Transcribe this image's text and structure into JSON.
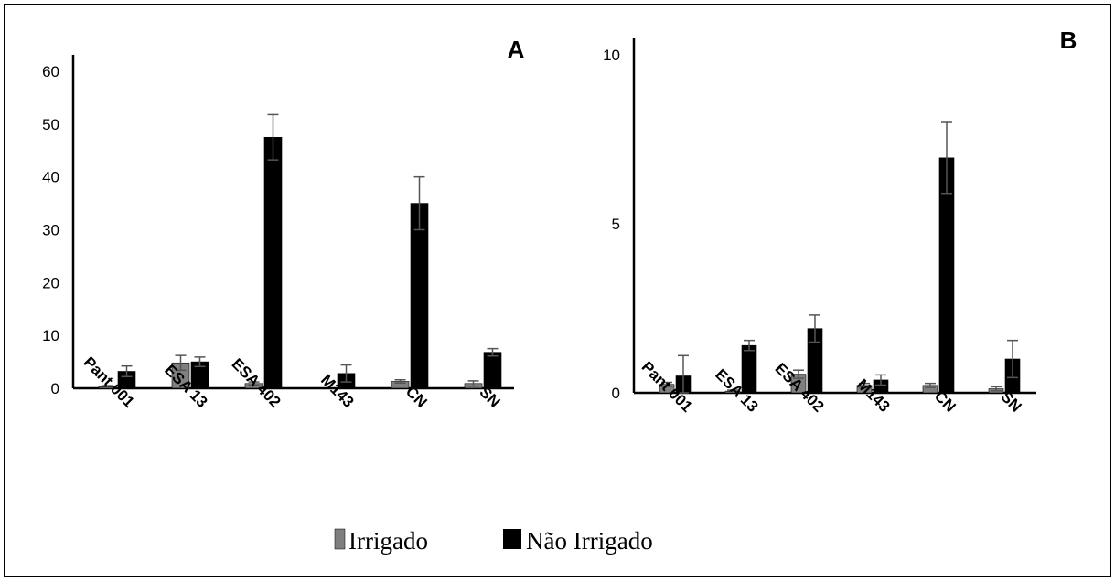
{
  "legend": {
    "items": [
      {
        "label": "Irrigado",
        "color": "#7f7f7f"
      },
      {
        "label": "Não Irrigado",
        "color": "#000000"
      }
    ],
    "position": "bottom-center"
  },
  "chart_data": [
    {
      "type": "bar",
      "panel_label": "A",
      "categories": [
        "Pant 001",
        "ESA 13",
        "ESA 402",
        "M143",
        "CN",
        "SN"
      ],
      "ylim": [
        0,
        60
      ],
      "yticks": [
        0,
        10,
        20,
        30,
        40,
        50,
        60
      ],
      "grid": false,
      "series": [
        {
          "name": "Irrigado",
          "color": "#7f7f7f",
          "values": [
            0.3,
            4.8,
            0.9,
            0,
            1.3,
            0.9
          ],
          "errors": [
            0.2,
            1.4,
            0.3,
            0,
            0.3,
            0.5
          ]
        },
        {
          "name": "Não Irrigado",
          "color": "#000000",
          "values": [
            3.2,
            5.0,
            47.5,
            2.8,
            35.0,
            6.8
          ],
          "errors": [
            1.0,
            0.9,
            4.3,
            1.6,
            5.0,
            0.7
          ]
        }
      ]
    },
    {
      "type": "bar",
      "panel_label": "B",
      "categories": [
        "Pant 001",
        "ESA 13",
        "ESA 402",
        "M143",
        "CN",
        "SN"
      ],
      "ylim": [
        0,
        10
      ],
      "yticks": [
        0,
        5,
        10
      ],
      "grid": false,
      "series": [
        {
          "name": "Irrigado",
          "color": "#7f7f7f",
          "values": [
            0.25,
            0.05,
            0.55,
            0.22,
            0.22,
            0.12
          ],
          "errors": [
            0.06,
            0.03,
            0.12,
            0.06,
            0.06,
            0.06
          ]
        },
        {
          "name": "Não Irrigado",
          "color": "#000000",
          "values": [
            0.5,
            1.4,
            1.9,
            0.38,
            6.95,
            1.0
          ],
          "errors": [
            0.6,
            0.15,
            0.4,
            0.15,
            1.05,
            0.55
          ]
        }
      ]
    }
  ]
}
